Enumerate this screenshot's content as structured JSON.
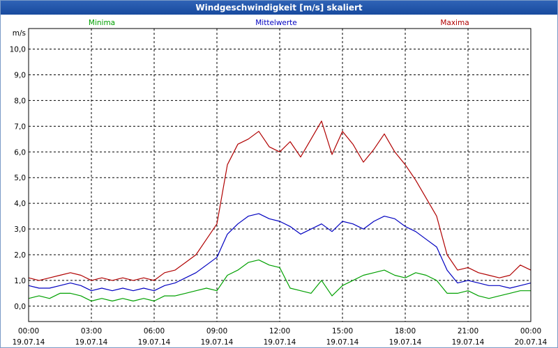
{
  "window": {
    "title": "Windgeschwindigkeit [m/s] skaliert"
  },
  "chart_data": {
    "type": "line",
    "title": "Windgeschwindigkeit [m/s] skaliert",
    "ylabel": "m/s",
    "xlabel": "",
    "ylim": [
      -0.6,
      10.8
    ],
    "xlim": [
      "19.07.14 00:00",
      "20.07.14 00:00"
    ],
    "grid": true,
    "legend_placement": "top",
    "y_ticks": [
      "0,0",
      "1,0",
      "2,0",
      "3,0",
      "4,0",
      "5,0",
      "6,0",
      "7,0",
      "8,0",
      "9,0",
      "10,0"
    ],
    "x_ticks": [
      {
        "time": "00:00",
        "date": "19.07.14"
      },
      {
        "time": "03:00",
        "date": "19.07.14"
      },
      {
        "time": "06:00",
        "date": "19.07.14"
      },
      {
        "time": "09:00",
        "date": "19.07.14"
      },
      {
        "time": "12:00",
        "date": "19.07.14"
      },
      {
        "time": "15:00",
        "date": "19.07.14"
      },
      {
        "time": "18:00",
        "date": "19.07.14"
      },
      {
        "time": "21:00",
        "date": "19.07.14"
      },
      {
        "time": "00:00",
        "date": "20.07.14"
      }
    ],
    "x_hours": [
      0,
      0.5,
      1,
      1.5,
      2,
      2.5,
      3,
      3.5,
      4,
      4.5,
      5,
      5.5,
      6,
      6.5,
      7,
      7.5,
      8,
      8.5,
      9,
      9.5,
      10,
      10.5,
      11,
      11.5,
      12,
      12.5,
      13,
      13.5,
      14,
      14.5,
      15,
      15.5,
      16,
      16.5,
      17,
      17.5,
      18,
      18.5,
      19,
      19.5,
      20,
      20.5,
      21,
      21.5,
      22,
      22.5,
      23,
      23.5,
      24
    ],
    "series": [
      {
        "name": "Minima",
        "color": "#00a000",
        "values": [
          0.3,
          0.4,
          0.3,
          0.5,
          0.5,
          0.4,
          0.2,
          0.3,
          0.2,
          0.3,
          0.2,
          0.3,
          0.2,
          0.4,
          0.4,
          0.5,
          0.6,
          0.7,
          0.6,
          1.2,
          1.4,
          1.7,
          1.8,
          1.6,
          1.5,
          0.7,
          0.6,
          0.5,
          1.0,
          0.4,
          0.8,
          1.0,
          1.2,
          1.3,
          1.4,
          1.2,
          1.1,
          1.3,
          1.2,
          1.0,
          0.5,
          0.5,
          0.6,
          0.4,
          0.3,
          0.4,
          0.5,
          0.6,
          0.6
        ]
      },
      {
        "name": "Mittelwerte",
        "color": "#0000c0",
        "values": [
          0.8,
          0.7,
          0.7,
          0.8,
          0.9,
          0.8,
          0.6,
          0.7,
          0.6,
          0.7,
          0.6,
          0.7,
          0.6,
          0.8,
          0.9,
          1.1,
          1.3,
          1.6,
          1.9,
          2.8,
          3.2,
          3.5,
          3.6,
          3.4,
          3.3,
          3.1,
          2.8,
          3.0,
          3.2,
          2.9,
          3.3,
          3.2,
          3.0,
          3.3,
          3.5,
          3.4,
          3.1,
          2.9,
          2.6,
          2.3,
          1.4,
          0.9,
          1.0,
          0.9,
          0.8,
          0.8,
          0.7,
          0.8,
          0.9
        ]
      },
      {
        "name": "Maxima",
        "color": "#b00000",
        "values": [
          1.1,
          1.0,
          1.1,
          1.2,
          1.3,
          1.2,
          1.0,
          1.1,
          1.0,
          1.1,
          1.0,
          1.1,
          1.0,
          1.3,
          1.4,
          1.7,
          2.0,
          2.6,
          3.2,
          5.5,
          6.3,
          6.5,
          6.8,
          6.2,
          6.0,
          6.4,
          5.8,
          6.5,
          7.2,
          5.9,
          6.8,
          6.3,
          5.6,
          6.1,
          6.7,
          6.0,
          5.5,
          4.9,
          4.2,
          3.5,
          2.0,
          1.4,
          1.5,
          1.3,
          1.2,
          1.1,
          1.2,
          1.6,
          1.4
        ]
      }
    ]
  }
}
